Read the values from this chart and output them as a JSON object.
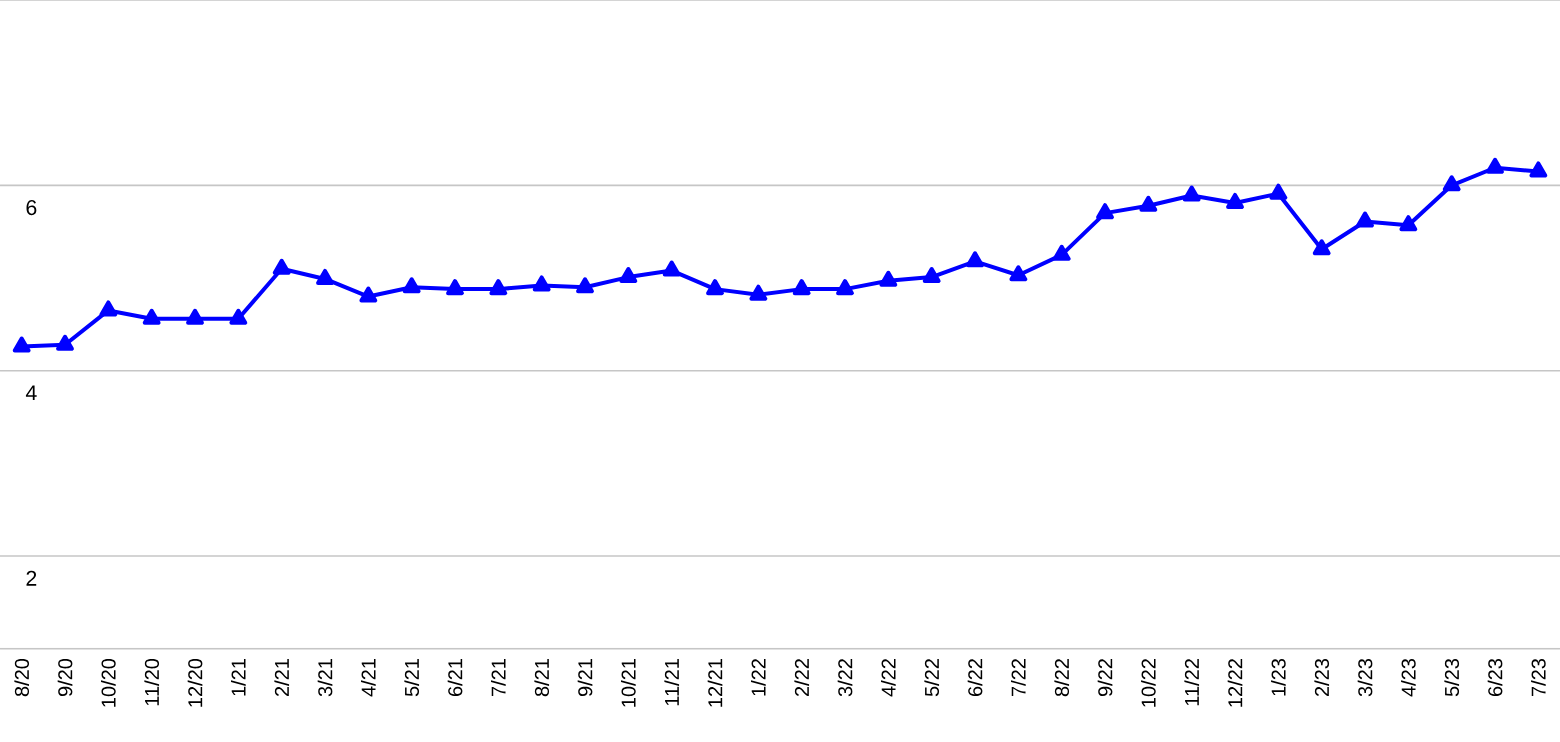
{
  "chart_data": {
    "type": "line",
    "categories": [
      "8/20",
      "9/20",
      "10/20",
      "11/20",
      "12/20",
      "1/21",
      "2/21",
      "3/21",
      "4/21",
      "5/21",
      "6/21",
      "7/21",
      "8/21",
      "9/21",
      "10/21",
      "11/21",
      "12/21",
      "1/22",
      "2/22",
      "3/22",
      "4/22",
      "5/22",
      "6/22",
      "7/22",
      "8/22",
      "9/22",
      "10/22",
      "11/22",
      "12/22",
      "1/23",
      "2/23",
      "3/23",
      "4/23",
      "5/23",
      "6/23",
      "7/23"
    ],
    "series": [
      {
        "color": "#0000ff",
        "values": [
          4.26,
          4.28,
          4.65,
          4.56,
          4.56,
          4.56,
          5.1,
          4.99,
          4.8,
          4.9,
          4.88,
          4.88,
          4.92,
          4.9,
          5.01,
          5.08,
          4.88,
          4.82,
          4.88,
          4.88,
          4.97,
          5.01,
          5.18,
          5.03,
          5.25,
          5.7,
          5.78,
          5.89,
          5.81,
          5.91,
          5.31,
          5.61,
          5.57,
          6.0,
          6.19,
          6.15
        ]
      }
    ],
    "ylim": [
      1,
      8
    ],
    "yticks": [
      2,
      4,
      6,
      {
        "value": 8,
        "label": null
      }
    ],
    "grid": "y",
    "marker": "triangle",
    "line_style": "solid"
  }
}
